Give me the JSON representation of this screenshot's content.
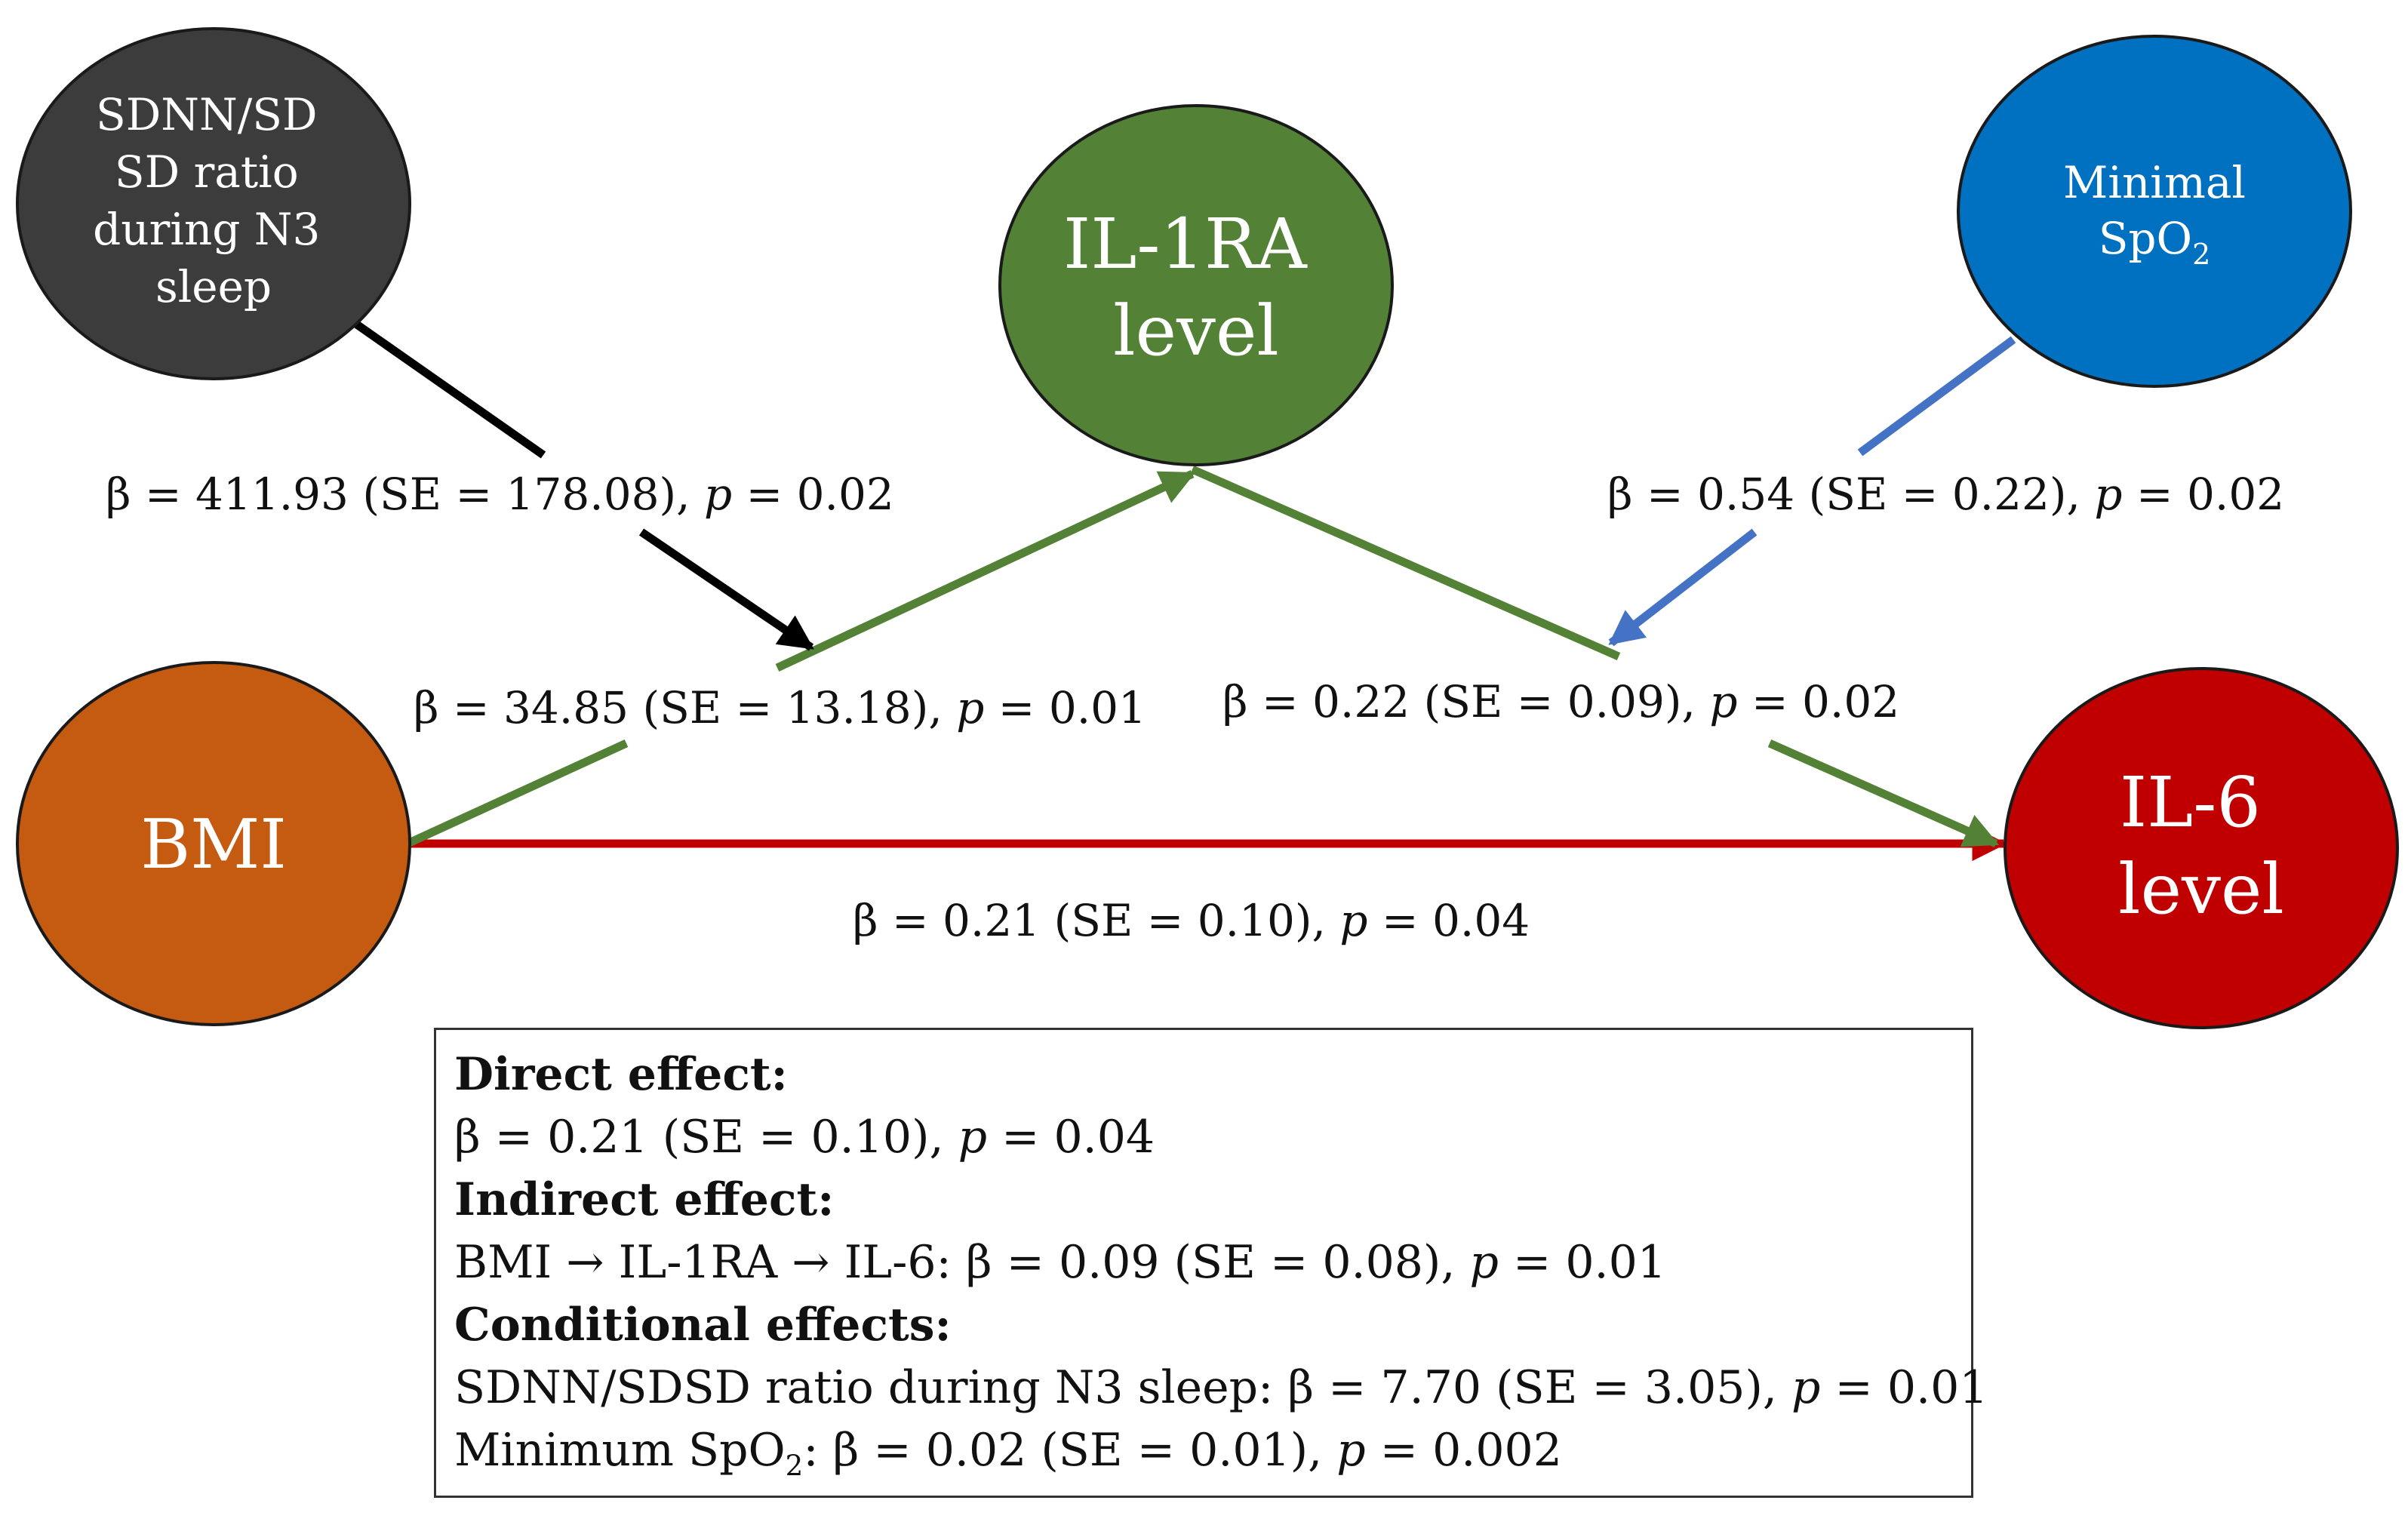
{
  "nodes": {
    "sdnn": {
      "lines": [
        "SDNN/SD",
        "SD ratio",
        "during N3",
        "sleep"
      ],
      "color": "#3c3c3c"
    },
    "il1ra": {
      "lines": [
        "IL-1RA",
        "level"
      ],
      "color": "#538135"
    },
    "spo2": {
      "line1": "Minimal",
      "line2_base": "SpO",
      "line2_sub": "2",
      "color": "#0070c0"
    },
    "bmi": {
      "label": "BMI",
      "color": "#c55a11"
    },
    "il6": {
      "lines": [
        "IL-6",
        "level"
      ],
      "color": "#c00000"
    }
  },
  "edge_colors": {
    "moderator_sdnn": "#000000",
    "mediation": "#538135",
    "moderator_spo2": "#4472c4",
    "direct": "#c00000"
  },
  "edge_labels": {
    "sdnn": {
      "pre": "β = 411.93 (SE = 178.08), ",
      "p": "p",
      "post": " = 0.02"
    },
    "spo2": {
      "pre": "β = 0.54 (SE = 0.22), ",
      "p": "p",
      "post": " = 0.02"
    },
    "bmi_il1ra": {
      "pre": "β = 34.85 (SE = 13.18), ",
      "p": "p",
      "post": " = 0.01"
    },
    "il1ra_il6": {
      "pre": "β = 0.22 (SE = 0.09), ",
      "p": "p",
      "post": " = 0.02"
    },
    "bmi_il6": {
      "pre": "β = 0.21 (SE = 0.10), ",
      "p": "p",
      "post": " = 0.04"
    }
  },
  "summary": {
    "direct_heading": "Direct effect:",
    "direct_pre": "β = 0.21 (SE = 0.10), ",
    "direct_p": "p",
    "direct_post": " = 0.04",
    "indirect_heading": "Indirect effect:",
    "indirect_pre": "BMI → IL-1RA → IL-6: β = 0.09 (SE = 0.08), ",
    "indirect_p": "p",
    "indirect_post": " = 0.01",
    "conditional_heading": "Conditional effects:",
    "cond1_pre": "SDNN/SDSD ratio during N3 sleep: β = 7.70 (SE = 3.05), ",
    "cond1_p": "p",
    "cond1_post": " = 0.01",
    "cond2_base": "Minimum SpO",
    "cond2_sub": "2",
    "cond2_rest": ": β = 0.02 (SE = 0.01), ",
    "cond2_p": "p",
    "cond2_post": " = 0.002"
  }
}
